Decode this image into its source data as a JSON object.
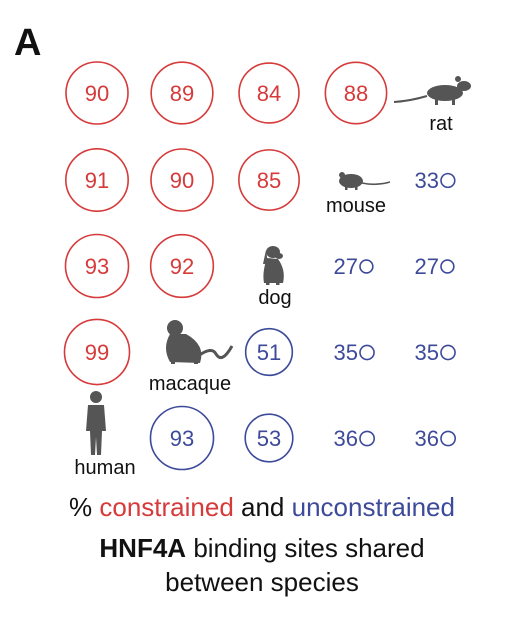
{
  "panel_label": "A",
  "colors": {
    "constrained": "#d63a3a",
    "unconstrained": "#3d4a9a",
    "animal": "#555555",
    "text": "#111111"
  },
  "rows": [
    {
      "constrained": [
        "90",
        "89",
        "84",
        "88"
      ],
      "species": "rat",
      "unconstrained": []
    },
    {
      "constrained": [
        "91",
        "90",
        "85"
      ],
      "species": "mouse",
      "unconstrained": [
        "33"
      ]
    },
    {
      "constrained": [
        "93",
        "92"
      ],
      "species": "dog",
      "unconstrained": [
        "27",
        "27"
      ]
    },
    {
      "constrained": [
        "99"
      ],
      "species": "macaque",
      "unconstrained": [
        "51",
        "35",
        "35"
      ]
    },
    {
      "constrained": [],
      "species": "human",
      "unconstrained": [
        "93",
        "53",
        "36",
        "36"
      ]
    }
  ],
  "caption": {
    "line1_prefix": "%",
    "constrained_word": "constrained",
    "and_word": "and",
    "unconstrained_word": "unconstrained",
    "line2_bold": "HNF4A",
    "line2_rest": "binding sites shared",
    "line3": "between species"
  }
}
